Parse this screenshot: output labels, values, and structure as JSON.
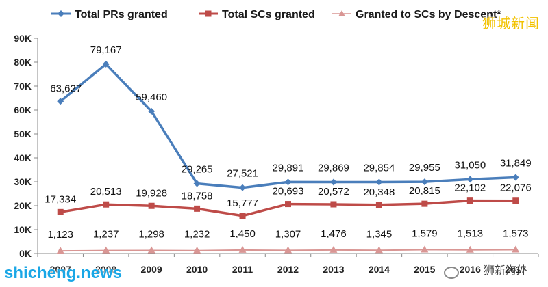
{
  "chart_data": {
    "type": "line",
    "categories": [
      "2007",
      "2008",
      "2009",
      "2010",
      "2011",
      "2012",
      "2013",
      "2014",
      "2015",
      "2016",
      "2017"
    ],
    "series": [
      {
        "name": "Total PRs granted",
        "color": "#4a7ebb",
        "marker": "diamond",
        "values": [
          63627,
          79167,
          59460,
          29265,
          27521,
          29891,
          29869,
          29854,
          29955,
          31050,
          31849
        ],
        "labels": [
          "63,627",
          "79,167",
          "59,460",
          "29,265",
          "27,521",
          "29,891",
          "29,869",
          "29,854",
          "29,955",
          "31,050",
          "31,849"
        ]
      },
      {
        "name": "Total SCs granted",
        "color": "#be4b48",
        "marker": "square",
        "values": [
          17334,
          20513,
          19928,
          18758,
          15777,
          20693,
          20572,
          20348,
          20815,
          22102,
          22076
        ],
        "labels": [
          "17,334",
          "20,513",
          "19,928",
          "18,758",
          "15,777",
          "20,693",
          "20,572",
          "20,348",
          "20,815",
          "22,102",
          "22,076"
        ]
      },
      {
        "name": "Granted to SCs by Descent*",
        "color": "#d99694",
        "marker": "triangle",
        "values": [
          1123,
          1237,
          1298,
          1232,
          1450,
          1307,
          1476,
          1345,
          1579,
          1513,
          1573
        ],
        "labels": [
          "1,123",
          "1,237",
          "1,298",
          "1,232",
          "1,450",
          "1,307",
          "1,476",
          "1,345",
          "1,579",
          "1,513",
          "1,573"
        ]
      }
    ],
    "ylim": [
      0,
      90000
    ],
    "yticks": [
      0,
      10000,
      20000,
      30000,
      40000,
      50000,
      60000,
      70000,
      80000,
      90000
    ],
    "ytick_labels": [
      "0K",
      "10K",
      "20K",
      "30K",
      "40K",
      "50K",
      "60K",
      "70K",
      "80K",
      "90K"
    ],
    "legend_position": "top",
    "grid": false
  },
  "watermarks": {
    "top_right": "狮城新闻",
    "bottom_left": "shicheng.news",
    "bottom_right": "狮新海外"
  }
}
